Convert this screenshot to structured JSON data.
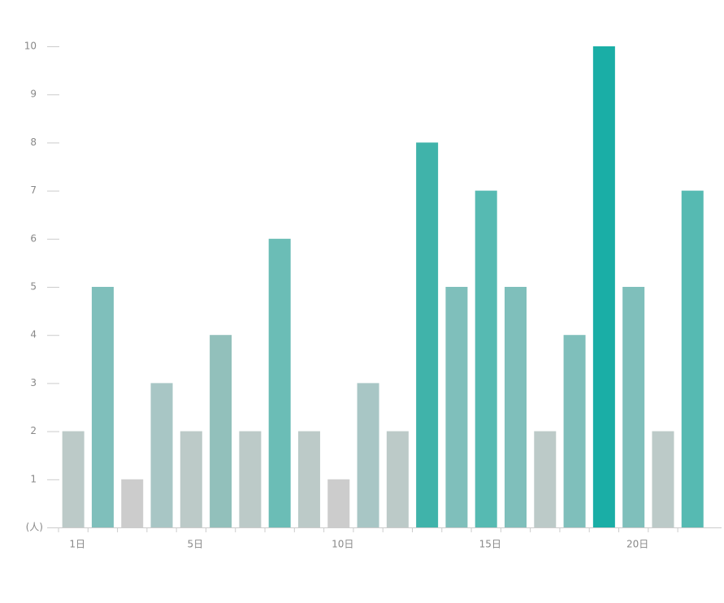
{
  "chart_data": {
    "type": "bar",
    "categories": [
      "1日",
      null,
      null,
      null,
      "5日",
      null,
      null,
      null,
      null,
      "10日",
      null,
      null,
      null,
      null,
      "15日",
      null,
      null,
      null,
      null,
      "20日",
      null,
      null
    ],
    "values": [
      2,
      5,
      1,
      3,
      2,
      4,
      2,
      6,
      2,
      1,
      3,
      2,
      8,
      5,
      7,
      5,
      2,
      4,
      10,
      5,
      2,
      7
    ],
    "colors": [
      "#bccac8",
      "#7fbfbb",
      "#cccccc",
      "#a8c6c5",
      "#bccac8",
      "#92c0bb",
      "#bccac8",
      "#6bbdb6",
      "#bccac8",
      "#cccccc",
      "#a8c6c5",
      "#bccac8",
      "#40b3aa",
      "#7fbfbb",
      "#56bab2",
      "#7fbfbb",
      "#bccac8",
      "#7fbfbb",
      "#1aaea6",
      "#7fbfbb",
      "#bccac8",
      "#56bab2"
    ],
    "ylim": [
      0,
      10
    ],
    "yticks": [
      {
        "value": 0,
        "label": "(人)"
      },
      1,
      2,
      3,
      4,
      5,
      6,
      7,
      8,
      9,
      10
    ]
  }
}
